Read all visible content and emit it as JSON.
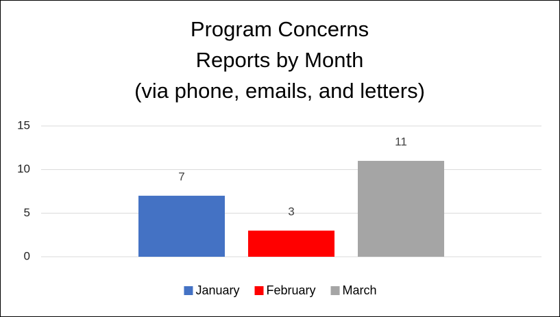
{
  "chart_data": {
    "type": "bar",
    "title": [
      "Program Concerns",
      "Reports by Month",
      "(via phone, emails, and letters)"
    ],
    "categories": [
      null
    ],
    "series": [
      {
        "name": "January",
        "color": "#4472c4",
        "values": [
          7
        ]
      },
      {
        "name": "February",
        "color": "#ff0000",
        "values": [
          3
        ]
      },
      {
        "name": "March",
        "color": "#a5a5a5",
        "values": [
          11
        ]
      }
    ],
    "ylim": [
      0,
      15
    ],
    "yticks": [
      0,
      5,
      10,
      15
    ],
    "grid": true,
    "legend": "bottom"
  }
}
